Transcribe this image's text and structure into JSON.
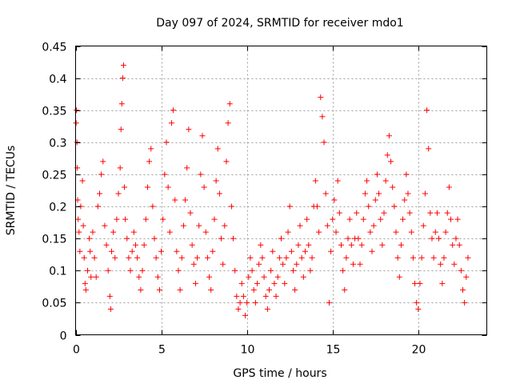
{
  "chart_data": {
    "type": "scatter",
    "title": "Day 097 of 2024, SRMTID for receiver mdo1",
    "xlabel": "GPS time / hours",
    "ylabel": "SRMTID / TECUs",
    "xlim": [
      0,
      24
    ],
    "ylim": [
      0,
      0.45
    ],
    "x_ticks": [
      0,
      5,
      10,
      15,
      20
    ],
    "x_tick_labels": [
      "0",
      "5",
      "10",
      "15",
      "20"
    ],
    "y_ticks": [
      0,
      0.05,
      0.1,
      0.15,
      0.2,
      0.25,
      0.3,
      0.35,
      0.4,
      0.45
    ],
    "y_tick_labels": [
      "0",
      "0.05",
      "0.1",
      "0.15",
      "0.2",
      "0.25",
      "0.3",
      "0.35",
      "0.4",
      "0.45"
    ],
    "grid": true,
    "marker": "+",
    "marker_color": "#ff0000",
    "series": [
      {
        "name": "SRMTID",
        "points": [
          [
            0.03,
            0.33
          ],
          [
            0.05,
            0.35
          ],
          [
            0.08,
            0.3
          ],
          [
            0.1,
            0.26
          ],
          [
            0.12,
            0.21
          ],
          [
            0.15,
            0.18
          ],
          [
            0.2,
            0.16
          ],
          [
            0.25,
            0.13
          ],
          [
            0.3,
            0.2
          ],
          [
            0.4,
            0.24
          ],
          [
            0.45,
            0.17
          ],
          [
            0.5,
            0.12
          ],
          [
            0.55,
            0.08
          ],
          [
            0.6,
            0.07
          ],
          [
            0.7,
            0.1
          ],
          [
            0.8,
            0.15
          ],
          [
            0.85,
            0.13
          ],
          [
            0.9,
            0.09
          ],
          [
            1.0,
            0.16
          ],
          [
            1.1,
            0.12
          ],
          [
            1.2,
            0.09
          ],
          [
            1.3,
            0.2
          ],
          [
            1.4,
            0.22
          ],
          [
            1.5,
            0.25
          ],
          [
            1.6,
            0.27
          ],
          [
            1.7,
            0.17
          ],
          [
            1.8,
            0.14
          ],
          [
            1.9,
            0.1
          ],
          [
            2.0,
            0.06
          ],
          [
            2.05,
            0.04
          ],
          [
            2.1,
            0.13
          ],
          [
            2.2,
            0.16
          ],
          [
            2.3,
            0.12
          ],
          [
            2.4,
            0.18
          ],
          [
            2.5,
            0.22
          ],
          [
            2.6,
            0.26
          ],
          [
            2.65,
            0.32
          ],
          [
            2.7,
            0.36
          ],
          [
            2.75,
            0.4
          ],
          [
            2.8,
            0.42
          ],
          [
            2.85,
            0.23
          ],
          [
            2.9,
            0.18
          ],
          [
            3.0,
            0.15
          ],
          [
            3.1,
            0.12
          ],
          [
            3.2,
            0.1
          ],
          [
            3.3,
            0.13
          ],
          [
            3.4,
            0.16
          ],
          [
            3.5,
            0.14
          ],
          [
            3.6,
            0.12
          ],
          [
            3.7,
            0.09
          ],
          [
            3.8,
            0.07
          ],
          [
            3.9,
            0.1
          ],
          [
            4.0,
            0.14
          ],
          [
            4.1,
            0.18
          ],
          [
            4.2,
            0.23
          ],
          [
            4.3,
            0.27
          ],
          [
            4.4,
            0.29
          ],
          [
            4.5,
            0.2
          ],
          [
            4.6,
            0.15
          ],
          [
            4.7,
            0.12
          ],
          [
            4.8,
            0.09
          ],
          [
            4.9,
            0.07
          ],
          [
            5.0,
            0.13
          ],
          [
            5.1,
            0.18
          ],
          [
            5.2,
            0.25
          ],
          [
            5.3,
            0.3
          ],
          [
            5.4,
            0.23
          ],
          [
            5.5,
            0.16
          ],
          [
            5.6,
            0.33
          ],
          [
            5.7,
            0.35
          ],
          [
            5.8,
            0.21
          ],
          [
            5.9,
            0.13
          ],
          [
            6.0,
            0.1
          ],
          [
            6.1,
            0.07
          ],
          [
            6.2,
            0.12
          ],
          [
            6.3,
            0.17
          ],
          [
            6.4,
            0.21
          ],
          [
            6.5,
            0.26
          ],
          [
            6.6,
            0.32
          ],
          [
            6.7,
            0.19
          ],
          [
            6.8,
            0.14
          ],
          [
            6.9,
            0.11
          ],
          [
            7.0,
            0.08
          ],
          [
            7.1,
            0.12
          ],
          [
            7.2,
            0.17
          ],
          [
            7.3,
            0.25
          ],
          [
            7.4,
            0.31
          ],
          [
            7.5,
            0.23
          ],
          [
            7.6,
            0.16
          ],
          [
            7.7,
            0.12
          ],
          [
            7.8,
            0.09
          ],
          [
            7.9,
            0.07
          ],
          [
            8.0,
            0.13
          ],
          [
            8.1,
            0.18
          ],
          [
            8.2,
            0.24
          ],
          [
            8.3,
            0.29
          ],
          [
            8.4,
            0.22
          ],
          [
            8.5,
            0.15
          ],
          [
            8.6,
            0.11
          ],
          [
            8.7,
            0.17
          ],
          [
            8.8,
            0.27
          ],
          [
            8.9,
            0.33
          ],
          [
            9.0,
            0.36
          ],
          [
            9.1,
            0.2
          ],
          [
            9.2,
            0.15
          ],
          [
            9.3,
            0.1
          ],
          [
            9.4,
            0.06
          ],
          [
            9.5,
            0.04
          ],
          [
            9.6,
            0.05
          ],
          [
            9.7,
            0.08
          ],
          [
            9.8,
            0.06
          ],
          [
            9.9,
            0.03
          ],
          [
            10.0,
            0.05
          ],
          [
            10.1,
            0.09
          ],
          [
            10.2,
            0.12
          ],
          [
            10.3,
            0.1
          ],
          [
            10.4,
            0.07
          ],
          [
            10.5,
            0.05
          ],
          [
            10.6,
            0.08
          ],
          [
            10.7,
            0.11
          ],
          [
            10.8,
            0.14
          ],
          [
            10.9,
            0.12
          ],
          [
            11.0,
            0.09
          ],
          [
            11.1,
            0.06
          ],
          [
            11.2,
            0.04
          ],
          [
            11.3,
            0.07
          ],
          [
            11.4,
            0.1
          ],
          [
            11.5,
            0.13
          ],
          [
            11.6,
            0.08
          ],
          [
            11.7,
            0.06
          ],
          [
            11.8,
            0.09
          ],
          [
            11.9,
            0.12
          ],
          [
            12.0,
            0.15
          ],
          [
            12.1,
            0.11
          ],
          [
            12.2,
            0.08
          ],
          [
            12.3,
            0.12
          ],
          [
            12.4,
            0.16
          ],
          [
            12.5,
            0.2
          ],
          [
            12.6,
            0.13
          ],
          [
            12.7,
            0.1
          ],
          [
            12.8,
            0.07
          ],
          [
            12.9,
            0.11
          ],
          [
            13.0,
            0.14
          ],
          [
            13.1,
            0.17
          ],
          [
            13.2,
            0.12
          ],
          [
            13.3,
            0.09
          ],
          [
            13.4,
            0.13
          ],
          [
            13.5,
            0.18
          ],
          [
            13.6,
            0.14
          ],
          [
            13.7,
            0.1
          ],
          [
            13.8,
            0.12
          ],
          [
            13.9,
            0.2
          ],
          [
            14.0,
            0.24
          ],
          [
            14.1,
            0.2
          ],
          [
            14.2,
            0.16
          ],
          [
            14.3,
            0.37
          ],
          [
            14.4,
            0.34
          ],
          [
            14.5,
            0.3
          ],
          [
            14.6,
            0.22
          ],
          [
            14.7,
            0.17
          ],
          [
            14.8,
            0.05
          ],
          [
            14.9,
            0.13
          ],
          [
            15.0,
            0.18
          ],
          [
            15.1,
            0.21
          ],
          [
            15.2,
            0.16
          ],
          [
            15.3,
            0.24
          ],
          [
            15.4,
            0.19
          ],
          [
            15.5,
            0.14
          ],
          [
            15.6,
            0.1
          ],
          [
            15.7,
            0.07
          ],
          [
            15.8,
            0.12
          ],
          [
            15.9,
            0.15
          ],
          [
            16.0,
            0.18
          ],
          [
            16.1,
            0.14
          ],
          [
            16.2,
            0.11
          ],
          [
            16.3,
            0.15
          ],
          [
            16.4,
            0.19
          ],
          [
            16.5,
            0.15
          ],
          [
            16.6,
            0.11
          ],
          [
            16.7,
            0.14
          ],
          [
            16.8,
            0.18
          ],
          [
            16.9,
            0.22
          ],
          [
            17.0,
            0.24
          ],
          [
            17.1,
            0.2
          ],
          [
            17.2,
            0.16
          ],
          [
            17.3,
            0.13
          ],
          [
            17.4,
            0.17
          ],
          [
            17.5,
            0.21
          ],
          [
            17.6,
            0.25
          ],
          [
            17.7,
            0.22
          ],
          [
            17.8,
            0.18
          ],
          [
            17.9,
            0.14
          ],
          [
            18.0,
            0.19
          ],
          [
            18.1,
            0.24
          ],
          [
            18.2,
            0.28
          ],
          [
            18.3,
            0.31
          ],
          [
            18.4,
            0.27
          ],
          [
            18.5,
            0.23
          ],
          [
            18.6,
            0.2
          ],
          [
            18.7,
            0.16
          ],
          [
            18.8,
            0.12
          ],
          [
            18.9,
            0.09
          ],
          [
            19.0,
            0.14
          ],
          [
            19.1,
            0.18
          ],
          [
            19.2,
            0.21
          ],
          [
            19.3,
            0.25
          ],
          [
            19.4,
            0.22
          ],
          [
            19.5,
            0.19
          ],
          [
            19.6,
            0.16
          ],
          [
            19.7,
            0.12
          ],
          [
            19.8,
            0.08
          ],
          [
            19.9,
            0.05
          ],
          [
            20.0,
            0.04
          ],
          [
            20.1,
            0.08
          ],
          [
            20.2,
            0.12
          ],
          [
            20.3,
            0.17
          ],
          [
            20.4,
            0.22
          ],
          [
            20.5,
            0.35
          ],
          [
            20.6,
            0.29
          ],
          [
            20.7,
            0.19
          ],
          [
            20.8,
            0.15
          ],
          [
            20.9,
            0.12
          ],
          [
            21.0,
            0.16
          ],
          [
            21.1,
            0.19
          ],
          [
            21.2,
            0.15
          ],
          [
            21.3,
            0.11
          ],
          [
            21.4,
            0.08
          ],
          [
            21.5,
            0.12
          ],
          [
            21.6,
            0.16
          ],
          [
            21.7,
            0.19
          ],
          [
            21.8,
            0.23
          ],
          [
            21.9,
            0.18
          ],
          [
            22.0,
            0.14
          ],
          [
            22.1,
            0.11
          ],
          [
            22.2,
            0.15
          ],
          [
            22.3,
            0.18
          ],
          [
            22.4,
            0.14
          ],
          [
            22.5,
            0.1
          ],
          [
            22.6,
            0.07
          ],
          [
            22.7,
            0.05
          ],
          [
            22.8,
            0.09
          ],
          [
            22.9,
            0.12
          ]
        ]
      }
    ]
  }
}
